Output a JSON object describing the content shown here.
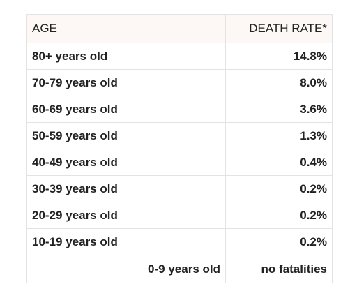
{
  "table": {
    "headers": {
      "age": "AGE",
      "rate": "DEATH RATE*"
    },
    "rows": [
      {
        "age": "80+ years old",
        "rate": "14.8%"
      },
      {
        "age": "70-79 years old",
        "rate": "8.0%"
      },
      {
        "age": "60-69 years old",
        "rate": "3.6%"
      },
      {
        "age": "50-59 years old",
        "rate": "1.3%"
      },
      {
        "age": "40-49 years old",
        "rate": "0.4%"
      },
      {
        "age": "30-39 years old",
        "rate": "0.2%"
      },
      {
        "age": "20-29 years old",
        "rate": "0.2%"
      },
      {
        "age": "10-19 years old",
        "rate": "0.2%"
      },
      {
        "age": "0-9 years old",
        "rate": "no fatalities"
      }
    ]
  }
}
